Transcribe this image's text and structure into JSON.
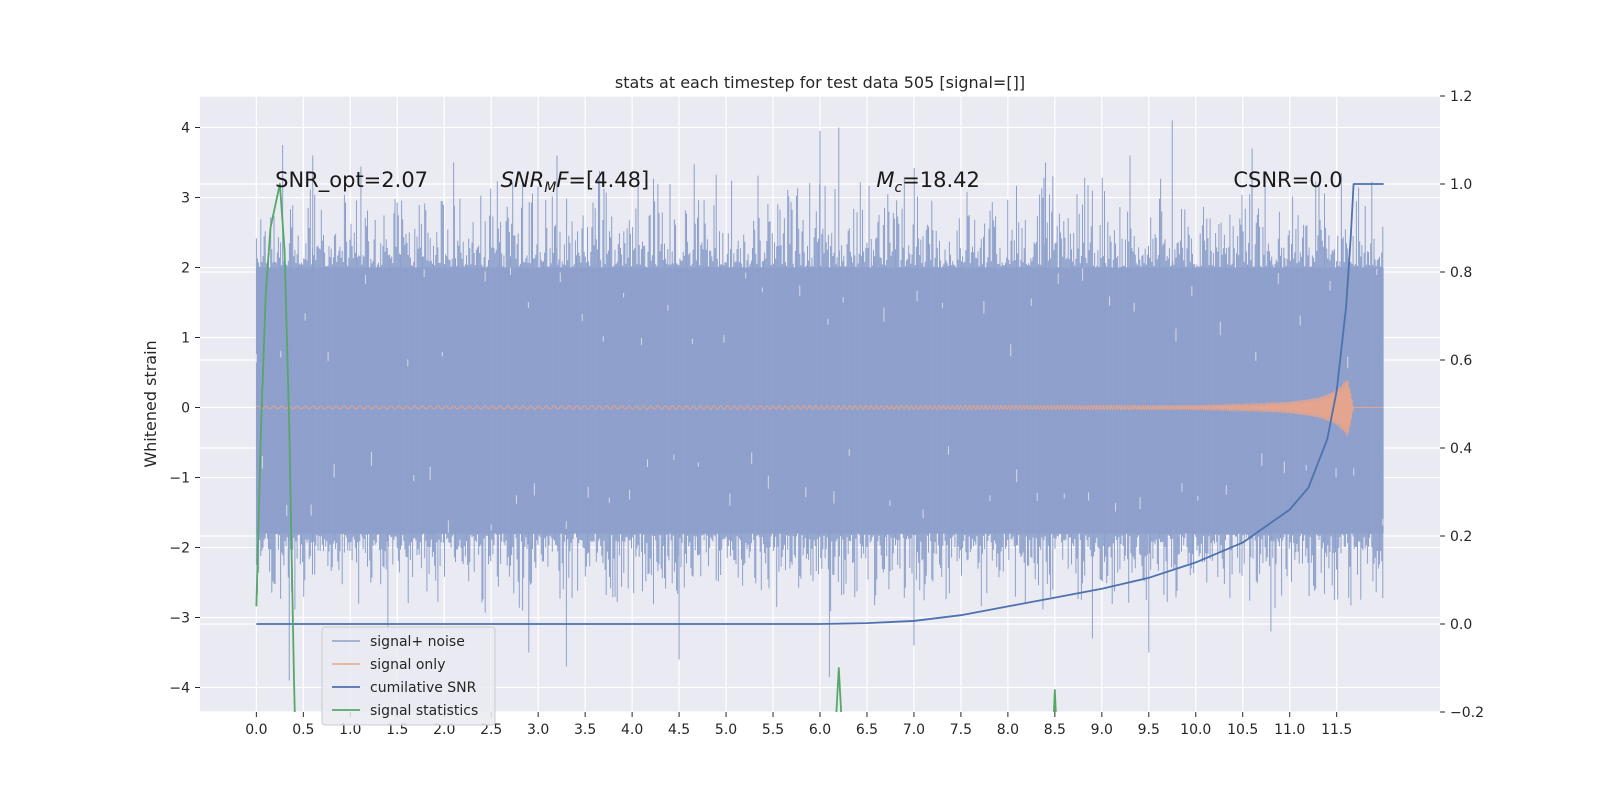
{
  "chart_data": {
    "type": "line",
    "title": "stats at each timestep for test data 505 [signal=[]]",
    "ylabel": "Whitened strain",
    "xlabel": "",
    "xlim": [
      -0.6,
      12.6
    ],
    "ylim": [
      -4.35,
      4.45
    ],
    "y2lim": [
      -0.2,
      1.2
    ],
    "grid": true,
    "legend_position": "lower-left",
    "xticks": [
      "0.0",
      "0.5",
      "1.0",
      "1.5",
      "2.0",
      "2.5",
      "3.0",
      "3.5",
      "4.0",
      "4.5",
      "5.0",
      "5.5",
      "6.0",
      "6.5",
      "7.0",
      "7.5",
      "8.0",
      "8.5",
      "9.0",
      "9.5",
      "10.0",
      "10.5",
      "11.0",
      "11.5"
    ],
    "yticks": [
      -4,
      -3,
      -2,
      -1,
      0,
      1,
      2,
      3,
      4
    ],
    "y2ticks": [
      "−0.2",
      "0.0",
      "0.2",
      "0.4",
      "0.6",
      "0.8",
      "1.0",
      "1.2"
    ],
    "yticks_text": [
      "−4",
      "−3",
      "−2",
      "−1",
      "0",
      "1",
      "2",
      "3",
      "4"
    ],
    "annotations": [
      {
        "text": "SNR_opt=2.07",
        "x": 0.2,
        "y": 3.25
      },
      {
        "text_main": "SNR",
        "text_sub": "M",
        "text_rest": "F=[4.48]",
        "x": 2.6,
        "y": 3.25
      },
      {
        "text_main": "M",
        "text_sub": "c",
        "text_rest": "=18.42",
        "x": 6.6,
        "y": 3.25
      },
      {
        "text": "CSNR=0.0",
        "x": 10.4,
        "y": 3.25
      }
    ],
    "series": [
      {
        "name": "signal+ noise",
        "color": "#8da0cb",
        "axis": "left",
        "description_values": {
          "x_range": [
            0.0,
            12.0
          ],
          "band_low": -1.8,
          "band_high": 2.0,
          "spikes_high": [
            [
              0.28,
              3.75
            ],
            [
              0.6,
              3.6
            ],
            [
              2.1,
              3.5
            ],
            [
              3.2,
              3.6
            ],
            [
              6.0,
              3.95
            ],
            [
              6.2,
              4.0
            ],
            [
              8.4,
              3.5
            ],
            [
              9.3,
              3.6
            ],
            [
              9.75,
              4.1
            ],
            [
              10.6,
              3.7
            ],
            [
              11.55,
              3.35
            ]
          ],
          "spikes_low": [
            [
              0.35,
              -3.9
            ],
            [
              1.4,
              -3.2
            ],
            [
              2.9,
              -3.5
            ],
            [
              3.3,
              -3.7
            ],
            [
              4.5,
              -3.6
            ],
            [
              6.1,
              -3.85
            ],
            [
              7.0,
              -3.4
            ],
            [
              8.9,
              -3.3
            ],
            [
              9.5,
              -3.5
            ],
            [
              10.8,
              -3.2
            ]
          ]
        }
      },
      {
        "name": "signal only",
        "color": "#e5a48d",
        "axis": "left",
        "x": [
          0.0,
          10.0,
          10.6,
          11.0,
          11.3,
          11.5,
          11.62,
          11.68,
          12.0
        ],
        "amplitude": [
          0.02,
          0.03,
          0.05,
          0.08,
          0.14,
          0.25,
          0.42,
          0.0,
          0.0
        ]
      },
      {
        "name": "cumilative SNR",
        "color": "#4c72b0",
        "axis": "right",
        "x": [
          0.0,
          6.0,
          6.5,
          7.0,
          7.5,
          8.0,
          8.5,
          9.0,
          9.5,
          10.0,
          10.5,
          11.0,
          11.2,
          11.4,
          11.5,
          11.6,
          11.65,
          11.68,
          12.0
        ],
        "y": [
          0.0,
          0.0,
          0.002,
          0.007,
          0.02,
          0.04,
          0.06,
          0.08,
          0.105,
          0.14,
          0.185,
          0.26,
          0.31,
          0.42,
          0.53,
          0.72,
          0.88,
          1.0,
          1.0
        ]
      },
      {
        "name": "signal statistics",
        "color": "#55a868",
        "axis": "right",
        "x": [
          0.0,
          0.05,
          0.1,
          0.15,
          0.2,
          0.25,
          0.3,
          0.35,
          0.4,
          0.42,
          null,
          6.15,
          6.2,
          6.25,
          null,
          8.47,
          8.5,
          8.53
        ],
        "y": [
          0.04,
          0.45,
          0.75,
          0.9,
          0.95,
          1.0,
          0.85,
          0.45,
          -0.12,
          -0.3,
          null,
          -0.3,
          -0.1,
          -0.3,
          null,
          -0.3,
          -0.15,
          -0.3
        ]
      }
    ]
  }
}
